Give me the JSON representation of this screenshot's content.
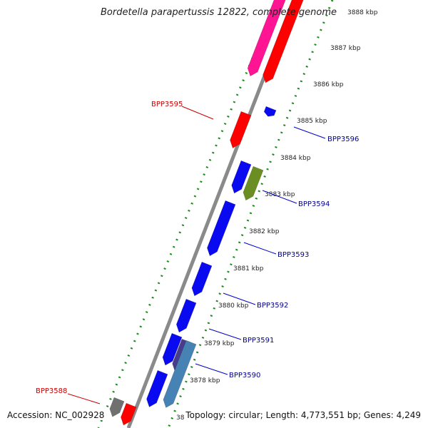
{
  "title": "Bordetella parapertussis 12822, complete genome",
  "footer": {
    "accession": "Accession: NC_002928",
    "summary": "Topology: circular; Length: 4,773,551 bp; Genes: 4,249"
  },
  "ticks": [
    "3888 kbp",
    "3887 kbp",
    "3886 kbp",
    "3885 kbp",
    "3884 kbp",
    "3883 kbp",
    "3882 kbp",
    "3881 kbp",
    "3880 kbp",
    "3879 kbp",
    "3878 kbp",
    "38"
  ],
  "labels": {
    "forward": [
      "BPP3596",
      "BPP3594",
      "BPP3593",
      "BPP3592",
      "BPP3591",
      "BPP3590"
    ],
    "reverse": [
      "BPP3595",
      "BPP3588"
    ]
  },
  "colors": {
    "forward_label": "#00008b",
    "reverse_label": "#cc0000",
    "cds_blue": "#0a0af0",
    "cds_red": "#ff0000",
    "cds_pink": "#ff1493",
    "cds_olive": "#6b8e23",
    "cds_steel": "#4682b4",
    "cds_slate": "#483d8b",
    "cds_gray": "#707070",
    "backbone": "#8a8a8a",
    "gc_dots": "#1a8a1a"
  }
}
